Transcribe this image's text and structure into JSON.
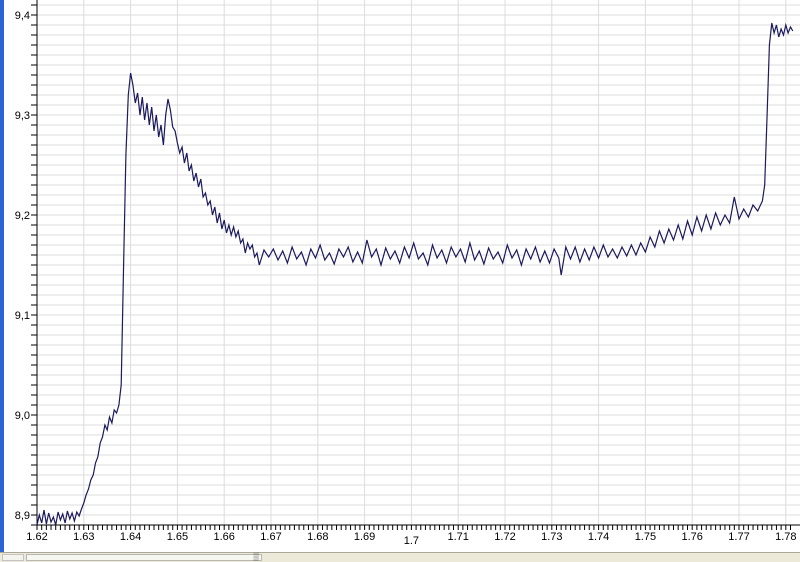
{
  "chart_data": {
    "type": "line",
    "title": "",
    "xlabel": "",
    "ylabel": "",
    "xlim": [
      1.62,
      1.7815
    ],
    "ylim": [
      8.89,
      9.415
    ],
    "grid": true,
    "line_color": "#1a1a5e",
    "grid_color": "#dcdcdc",
    "x_ticks": [
      "1.62",
      "1.63",
      "1.64",
      "1.65",
      "1.66",
      "1.67",
      "1.68",
      "1.69",
      "1.7",
      "1.71",
      "1.72",
      "1.73",
      "1.74",
      "1.75",
      "1.76",
      "1.77",
      "1.78"
    ],
    "y_ticks": [
      "8,9",
      "9,0",
      "9,1",
      "9,2",
      "9,3",
      "9,4"
    ],
    "points": [
      [
        1.62,
        8.89
      ],
      [
        1.6205,
        8.9
      ],
      [
        1.621,
        8.892
      ],
      [
        1.6215,
        8.905
      ],
      [
        1.622,
        8.891
      ],
      [
        1.6225,
        8.902
      ],
      [
        1.623,
        8.893
      ],
      [
        1.6235,
        8.898
      ],
      [
        1.624,
        8.89
      ],
      [
        1.6245,
        8.903
      ],
      [
        1.625,
        8.895
      ],
      [
        1.6255,
        8.901
      ],
      [
        1.626,
        8.892
      ],
      [
        1.6265,
        8.904
      ],
      [
        1.627,
        8.896
      ],
      [
        1.6275,
        8.902
      ],
      [
        1.628,
        8.894
      ],
      [
        1.6285,
        8.903
      ],
      [
        1.629,
        8.899
      ],
      [
        1.6295,
        8.906
      ],
      [
        1.63,
        8.912
      ],
      [
        1.6305,
        8.92
      ],
      [
        1.631,
        8.926
      ],
      [
        1.6315,
        8.935
      ],
      [
        1.632,
        8.94
      ],
      [
        1.6325,
        8.952
      ],
      [
        1.633,
        8.958
      ],
      [
        1.6335,
        8.972
      ],
      [
        1.634,
        8.978
      ],
      [
        1.6345,
        8.99
      ],
      [
        1.635,
        8.985
      ],
      [
        1.6355,
        8.998
      ],
      [
        1.636,
        8.992
      ],
      [
        1.6365,
        9.005
      ],
      [
        1.637,
        9.002
      ],
      [
        1.6375,
        9.01
      ],
      [
        1.638,
        9.03
      ],
      [
        1.6385,
        9.15
      ],
      [
        1.639,
        9.26
      ],
      [
        1.6395,
        9.32
      ],
      [
        1.64,
        9.342
      ],
      [
        1.6405,
        9.33
      ],
      [
        1.641,
        9.312
      ],
      [
        1.6415,
        9.322
      ],
      [
        1.642,
        9.3
      ],
      [
        1.6425,
        9.318
      ],
      [
        1.643,
        9.295
      ],
      [
        1.6435,
        9.312
      ],
      [
        1.644,
        9.29
      ],
      [
        1.6445,
        9.308
      ],
      [
        1.645,
        9.284
      ],
      [
        1.6455,
        9.3
      ],
      [
        1.646,
        9.278
      ],
      [
        1.6465,
        9.29
      ],
      [
        1.647,
        9.27
      ],
      [
        1.6475,
        9.3
      ],
      [
        1.648,
        9.316
      ],
      [
        1.6485,
        9.305
      ],
      [
        1.649,
        9.288
      ],
      [
        1.6495,
        9.284
      ],
      [
        1.65,
        9.272
      ],
      [
        1.6505,
        9.262
      ],
      [
        1.651,
        9.268
      ],
      [
        1.6515,
        9.252
      ],
      [
        1.652,
        9.262
      ],
      [
        1.6525,
        9.244
      ],
      [
        1.653,
        9.25
      ],
      [
        1.6535,
        9.234
      ],
      [
        1.654,
        9.242
      ],
      [
        1.6545,
        9.228
      ],
      [
        1.655,
        9.236
      ],
      [
        1.6555,
        9.218
      ],
      [
        1.656,
        9.222
      ],
      [
        1.6565,
        9.21
      ],
      [
        1.657,
        9.214
      ],
      [
        1.6575,
        9.2
      ],
      [
        1.658,
        9.208
      ],
      [
        1.6585,
        9.192
      ],
      [
        1.659,
        9.202
      ],
      [
        1.6595,
        9.186
      ],
      [
        1.66,
        9.195
      ],
      [
        1.6605,
        9.182
      ],
      [
        1.661,
        9.19
      ],
      [
        1.6615,
        9.18
      ],
      [
        1.662,
        9.188
      ],
      [
        1.6625,
        9.178
      ],
      [
        1.663,
        9.184
      ],
      [
        1.6635,
        9.172
      ],
      [
        1.664,
        9.176
      ],
      [
        1.6645,
        9.162
      ],
      [
        1.665,
        9.172
      ],
      [
        1.6655,
        9.166
      ],
      [
        1.666,
        9.17
      ],
      [
        1.6665,
        9.158
      ],
      [
        1.667,
        9.162
      ],
      [
        1.6675,
        9.15
      ],
      [
        1.6685,
        9.165
      ],
      [
        1.6695,
        9.158
      ],
      [
        1.6705,
        9.166
      ],
      [
        1.6715,
        9.155
      ],
      [
        1.6725,
        9.164
      ],
      [
        1.6735,
        9.152
      ],
      [
        1.6745,
        9.168
      ],
      [
        1.6755,
        9.156
      ],
      [
        1.6765,
        9.163
      ],
      [
        1.6775,
        9.15
      ],
      [
        1.6785,
        9.166
      ],
      [
        1.6795,
        9.157
      ],
      [
        1.6805,
        9.17
      ],
      [
        1.6815,
        9.155
      ],
      [
        1.6825,
        9.162
      ],
      [
        1.6835,
        9.151
      ],
      [
        1.6845,
        9.166
      ],
      [
        1.6855,
        9.158
      ],
      [
        1.6865,
        9.168
      ],
      [
        1.6875,
        9.153
      ],
      [
        1.6885,
        9.163
      ],
      [
        1.6895,
        9.152
      ],
      [
        1.6905,
        9.175
      ],
      [
        1.6915,
        9.158
      ],
      [
        1.6925,
        9.166
      ],
      [
        1.6935,
        9.15
      ],
      [
        1.6945,
        9.167
      ],
      [
        1.6955,
        9.156
      ],
      [
        1.6965,
        9.164
      ],
      [
        1.6975,
        9.152
      ],
      [
        1.6985,
        9.168
      ],
      [
        1.6995,
        9.157
      ],
      [
        1.7005,
        9.172
      ],
      [
        1.7015,
        9.156
      ],
      [
        1.7025,
        9.162
      ],
      [
        1.7035,
        9.15
      ],
      [
        1.7045,
        9.17
      ],
      [
        1.7055,
        9.157
      ],
      [
        1.7065,
        9.165
      ],
      [
        1.7075,
        9.152
      ],
      [
        1.7085,
        9.168
      ],
      [
        1.7095,
        9.158
      ],
      [
        1.7105,
        9.166
      ],
      [
        1.7115,
        9.153
      ],
      [
        1.7125,
        9.172
      ],
      [
        1.7135,
        9.155
      ],
      [
        1.7145,
        9.164
      ],
      [
        1.7155,
        9.151
      ],
      [
        1.7165,
        9.167
      ],
      [
        1.7175,
        9.156
      ],
      [
        1.7185,
        9.163
      ],
      [
        1.7195,
        9.152
      ],
      [
        1.7205,
        9.17
      ],
      [
        1.7215,
        9.157
      ],
      [
        1.7225,
        9.165
      ],
      [
        1.7235,
        9.15
      ],
      [
        1.7245,
        9.166
      ],
      [
        1.7255,
        9.156
      ],
      [
        1.7265,
        9.168
      ],
      [
        1.7275,
        9.153
      ],
      [
        1.7285,
        9.164
      ],
      [
        1.7295,
        9.152
      ],
      [
        1.7305,
        9.166
      ],
      [
        1.7315,
        9.157
      ],
      [
        1.732,
        9.14
      ],
      [
        1.733,
        9.168
      ],
      [
        1.734,
        9.156
      ],
      [
        1.735,
        9.168
      ],
      [
        1.736,
        9.153
      ],
      [
        1.737,
        9.166
      ],
      [
        1.738,
        9.155
      ],
      [
        1.739,
        9.168
      ],
      [
        1.74,
        9.157
      ],
      [
        1.741,
        9.17
      ],
      [
        1.742,
        9.158
      ],
      [
        1.743,
        9.166
      ],
      [
        1.744,
        9.157
      ],
      [
        1.745,
        9.168
      ],
      [
        1.746,
        9.159
      ],
      [
        1.747,
        9.17
      ],
      [
        1.748,
        9.16
      ],
      [
        1.749,
        9.172
      ],
      [
        1.75,
        9.163
      ],
      [
        1.751,
        9.178
      ],
      [
        1.752,
        9.168
      ],
      [
        1.753,
        9.184
      ],
      [
        1.754,
        9.172
      ],
      [
        1.755,
        9.186
      ],
      [
        1.756,
        9.175
      ],
      [
        1.757,
        9.19
      ],
      [
        1.758,
        9.176
      ],
      [
        1.759,
        9.194
      ],
      [
        1.76,
        9.18
      ],
      [
        1.761,
        9.198
      ],
      [
        1.762,
        9.184
      ],
      [
        1.763,
        9.2
      ],
      [
        1.764,
        9.186
      ],
      [
        1.765,
        9.202
      ],
      [
        1.766,
        9.19
      ],
      [
        1.767,
        9.2
      ],
      [
        1.768,
        9.192
      ],
      [
        1.769,
        9.218
      ],
      [
        1.77,
        9.196
      ],
      [
        1.771,
        9.206
      ],
      [
        1.772,
        9.198
      ],
      [
        1.773,
        9.21
      ],
      [
        1.774,
        9.204
      ],
      [
        1.775,
        9.214
      ],
      [
        1.7755,
        9.23
      ],
      [
        1.776,
        9.3
      ],
      [
        1.7765,
        9.37
      ],
      [
        1.777,
        9.392
      ],
      [
        1.7775,
        9.382
      ],
      [
        1.778,
        9.39
      ],
      [
        1.7785,
        9.378
      ],
      [
        1.779,
        9.386
      ],
      [
        1.7795,
        9.38
      ],
      [
        1.78,
        9.39
      ],
      [
        1.7805,
        9.382
      ],
      [
        1.781,
        9.388
      ],
      [
        1.7815,
        9.384
      ]
    ]
  },
  "scrollbar": {
    "grip_icon": "grip-icon"
  }
}
